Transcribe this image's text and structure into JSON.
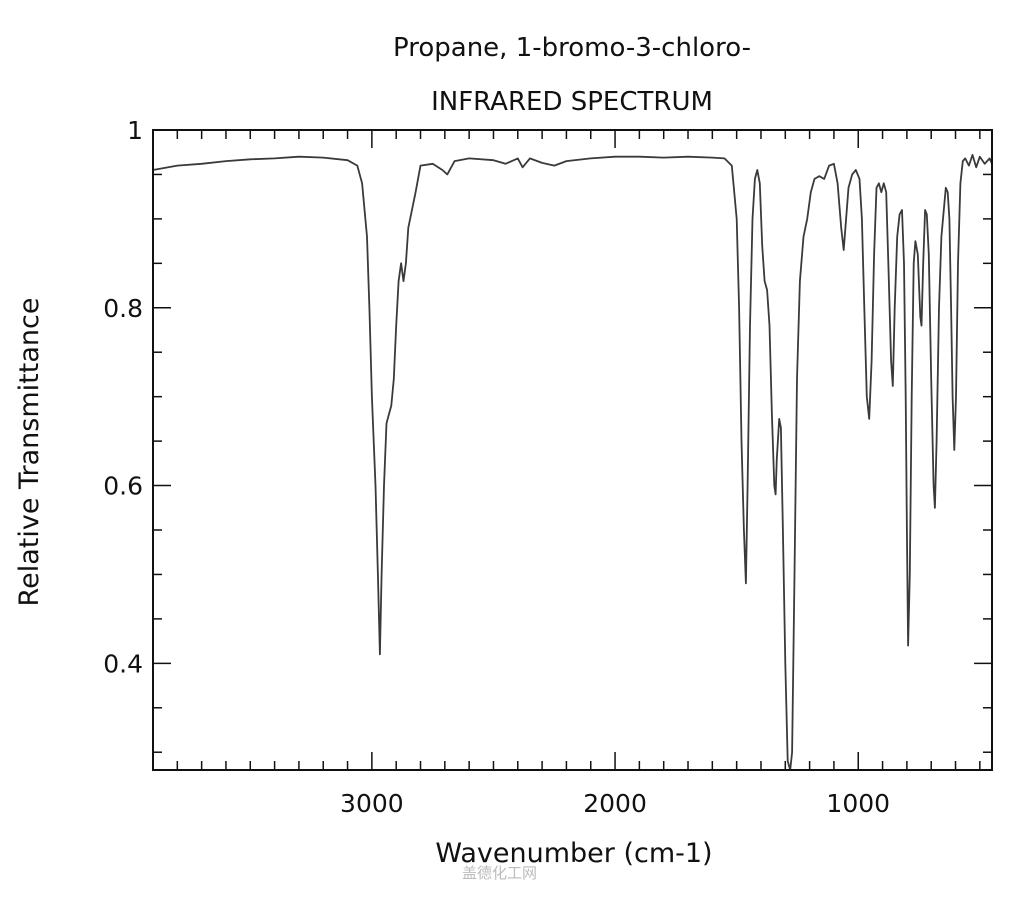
{
  "chart_data": {
    "type": "line",
    "title": "Propane, 1-bromo-3-chloro-",
    "subtitle": "INFRARED SPECTRUM",
    "xlabel": "Wavenumber (cm-1)",
    "ylabel": "Relative Transmittance",
    "xlim": [
      3900,
      450
    ],
    "ylim": [
      0.28,
      1.0
    ],
    "x_reversed": true,
    "x_ticks": [
      3000,
      2000,
      1000
    ],
    "x_tick_labels": [
      "3000",
      "2000",
      "1000"
    ],
    "y_ticks": [
      1.0,
      0.8,
      0.6,
      0.4
    ],
    "y_tick_labels": [
      "1",
      "0.8",
      "0.6",
      "0.4"
    ],
    "grid": false,
    "series": [
      {
        "points": [
          [
            3900,
            0.955
          ],
          [
            3800,
            0.96
          ],
          [
            3700,
            0.962
          ],
          [
            3600,
            0.965
          ],
          [
            3500,
            0.967
          ],
          [
            3400,
            0.968
          ],
          [
            3300,
            0.97
          ],
          [
            3200,
            0.969
          ],
          [
            3100,
            0.966
          ],
          [
            3060,
            0.96
          ],
          [
            3040,
            0.94
          ],
          [
            3020,
            0.88
          ],
          [
            3010,
            0.8
          ],
          [
            3000,
            0.7
          ],
          [
            2985,
            0.6
          ],
          [
            2975,
            0.5
          ],
          [
            2967,
            0.41
          ],
          [
            2960,
            0.5
          ],
          [
            2950,
            0.6
          ],
          [
            2940,
            0.67
          ],
          [
            2930,
            0.68
          ],
          [
            2920,
            0.69
          ],
          [
            2910,
            0.72
          ],
          [
            2900,
            0.78
          ],
          [
            2890,
            0.83
          ],
          [
            2880,
            0.85
          ],
          [
            2870,
            0.83
          ],
          [
            2860,
            0.85
          ],
          [
            2850,
            0.89
          ],
          [
            2820,
            0.93
          ],
          [
            2800,
            0.96
          ],
          [
            2750,
            0.962
          ],
          [
            2710,
            0.955
          ],
          [
            2690,
            0.95
          ],
          [
            2660,
            0.965
          ],
          [
            2600,
            0.968
          ],
          [
            2500,
            0.966
          ],
          [
            2450,
            0.962
          ],
          [
            2400,
            0.968
          ],
          [
            2380,
            0.958
          ],
          [
            2350,
            0.968
          ],
          [
            2300,
            0.963
          ],
          [
            2250,
            0.96
          ],
          [
            2200,
            0.965
          ],
          [
            2100,
            0.968
          ],
          [
            2000,
            0.97
          ],
          [
            1900,
            0.97
          ],
          [
            1800,
            0.969
          ],
          [
            1700,
            0.97
          ],
          [
            1600,
            0.969
          ],
          [
            1550,
            0.968
          ],
          [
            1520,
            0.96
          ],
          [
            1500,
            0.9
          ],
          [
            1490,
            0.8
          ],
          [
            1480,
            0.65
          ],
          [
            1470,
            0.55
          ],
          [
            1462,
            0.49
          ],
          [
            1455,
            0.6
          ],
          [
            1445,
            0.78
          ],
          [
            1435,
            0.9
          ],
          [
            1425,
            0.945
          ],
          [
            1415,
            0.955
          ],
          [
            1405,
            0.94
          ],
          [
            1395,
            0.87
          ],
          [
            1385,
            0.83
          ],
          [
            1375,
            0.82
          ],
          [
            1365,
            0.78
          ],
          [
            1355,
            0.68
          ],
          [
            1345,
            0.6
          ],
          [
            1340,
            0.59
          ],
          [
            1335,
            0.63
          ],
          [
            1325,
            0.675
          ],
          [
            1318,
            0.665
          ],
          [
            1310,
            0.55
          ],
          [
            1300,
            0.4
          ],
          [
            1290,
            0.29
          ],
          [
            1280,
            0.28
          ],
          [
            1272,
            0.3
          ],
          [
            1262,
            0.5
          ],
          [
            1252,
            0.72
          ],
          [
            1240,
            0.83
          ],
          [
            1225,
            0.88
          ],
          [
            1210,
            0.9
          ],
          [
            1195,
            0.93
          ],
          [
            1180,
            0.945
          ],
          [
            1160,
            0.948
          ],
          [
            1140,
            0.945
          ],
          [
            1120,
            0.96
          ],
          [
            1100,
            0.962
          ],
          [
            1085,
            0.94
          ],
          [
            1070,
            0.89
          ],
          [
            1060,
            0.865
          ],
          [
            1050,
            0.9
          ],
          [
            1040,
            0.935
          ],
          [
            1025,
            0.95
          ],
          [
            1010,
            0.955
          ],
          [
            995,
            0.945
          ],
          [
            985,
            0.9
          ],
          [
            975,
            0.8
          ],
          [
            965,
            0.7
          ],
          [
            955,
            0.675
          ],
          [
            945,
            0.74
          ],
          [
            935,
            0.86
          ],
          [
            925,
            0.935
          ],
          [
            915,
            0.94
          ],
          [
            905,
            0.93
          ],
          [
            895,
            0.94
          ],
          [
            885,
            0.93
          ],
          [
            875,
            0.84
          ],
          [
            865,
            0.74
          ],
          [
            858,
            0.712
          ],
          [
            850,
            0.8
          ],
          [
            840,
            0.88
          ],
          [
            830,
            0.905
          ],
          [
            820,
            0.91
          ],
          [
            812,
            0.85
          ],
          [
            805,
            0.7
          ],
          [
            800,
            0.55
          ],
          [
            795,
            0.42
          ],
          [
            788,
            0.5
          ],
          [
            780,
            0.7
          ],
          [
            772,
            0.85
          ],
          [
            765,
            0.875
          ],
          [
            755,
            0.86
          ],
          [
            745,
            0.79
          ],
          [
            740,
            0.78
          ],
          [
            733,
            0.85
          ],
          [
            725,
            0.91
          ],
          [
            718,
            0.905
          ],
          [
            710,
            0.86
          ],
          [
            700,
            0.72
          ],
          [
            690,
            0.6
          ],
          [
            685,
            0.575
          ],
          [
            678,
            0.65
          ],
          [
            668,
            0.8
          ],
          [
            658,
            0.88
          ],
          [
            648,
            0.91
          ],
          [
            640,
            0.935
          ],
          [
            632,
            0.93
          ],
          [
            625,
            0.9
          ],
          [
            618,
            0.8
          ],
          [
            612,
            0.7
          ],
          [
            605,
            0.64
          ],
          [
            598,
            0.7
          ],
          [
            590,
            0.85
          ],
          [
            580,
            0.94
          ],
          [
            570,
            0.965
          ],
          [
            560,
            0.968
          ],
          [
            545,
            0.96
          ],
          [
            530,
            0.972
          ],
          [
            515,
            0.958
          ],
          [
            500,
            0.97
          ],
          [
            480,
            0.962
          ],
          [
            460,
            0.968
          ],
          [
            450,
            0.962
          ]
        ]
      }
    ]
  },
  "watermark": "盖德化工网"
}
